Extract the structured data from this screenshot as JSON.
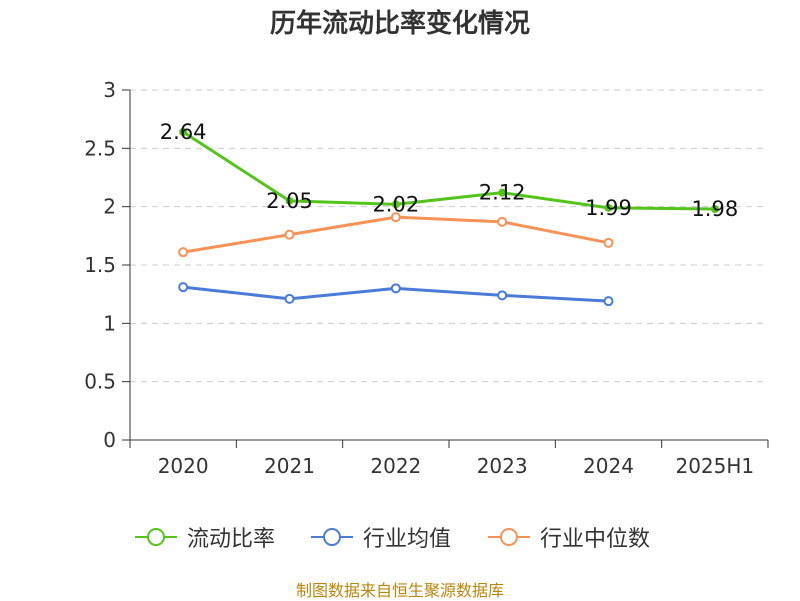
{
  "chart_data": {
    "type": "line",
    "title": "历年流动比率变化情况",
    "categories": [
      "2020",
      "2021",
      "2022",
      "2023",
      "2024",
      "2025H1"
    ],
    "ylim": [
      0,
      3
    ],
    "yticks": [
      "0",
      "0.5",
      "1",
      "1.5",
      "2",
      "2.5",
      "3"
    ],
    "grid": true,
    "legend_position": "bottom",
    "series": [
      {
        "name": "流动比率",
        "color": "#52c41a",
        "values": [
          2.64,
          2.05,
          2.02,
          2.12,
          1.99,
          1.98
        ],
        "labels": [
          "2.64",
          "2.05",
          "2.02",
          "2.12",
          "1.99",
          "1.98"
        ],
        "marker": "solid"
      },
      {
        "name": "行业均值",
        "color": "#4a7bd9",
        "values": [
          1.31,
          1.21,
          1.3,
          1.24,
          1.19,
          null
        ],
        "labels": [],
        "marker": "hollow"
      },
      {
        "name": "行业中位数",
        "color": "#f79256",
        "values": [
          1.61,
          1.76,
          1.91,
          1.87,
          1.69,
          null
        ],
        "labels": [],
        "marker": "hollow"
      }
    ]
  },
  "source": "制图数据来自恒生聚源数据库"
}
